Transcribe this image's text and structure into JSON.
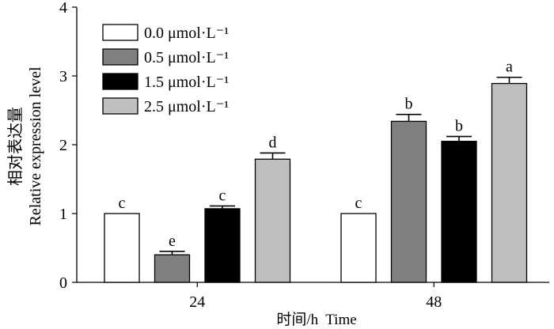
{
  "chart_data": {
    "type": "bar",
    "ylabel_cn": "相对表达量",
    "ylabel_en": "Relative expression level",
    "xlabel": "时间/h  Time",
    "ylim": [
      0,
      4
    ],
    "yticks": [
      "0",
      "1",
      "2",
      "3",
      "4"
    ],
    "categories": [
      "24",
      "48"
    ],
    "legend_position": "top-left",
    "series": [
      {
        "name": "0.0 μmol·L⁻¹",
        "color": "#ffffff",
        "values": [
          1.0,
          1.0
        ],
        "errors": [
          0.0,
          0.0
        ],
        "letters": [
          "c",
          "c"
        ]
      },
      {
        "name": "0.5 μmol·L⁻¹",
        "color": "#808080",
        "values": [
          0.4,
          2.34
        ],
        "errors": [
          0.05,
          0.1
        ],
        "letters": [
          "e",
          "b"
        ]
      },
      {
        "name": "1.5 μmol·L⁻¹",
        "color": "#000000",
        "values": [
          1.07,
          2.05
        ],
        "errors": [
          0.04,
          0.07
        ],
        "letters": [
          "c",
          "b"
        ]
      },
      {
        "name": "2.5 μmol·L⁻¹",
        "color": "#bfbfbf",
        "values": [
          1.79,
          2.89
        ],
        "errors": [
          0.09,
          0.09
        ],
        "letters": [
          "d",
          "a"
        ]
      }
    ]
  }
}
